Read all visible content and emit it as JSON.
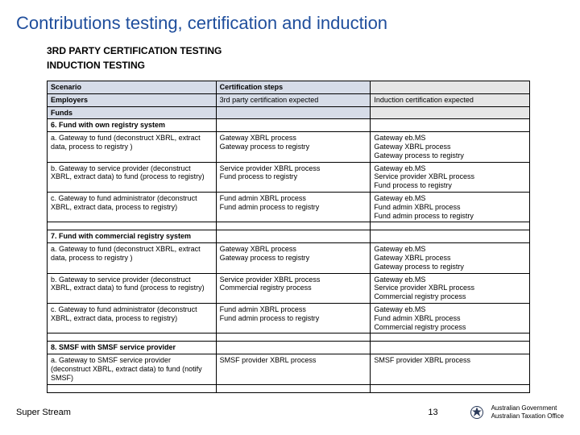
{
  "title": "Contributions testing, certification and induction",
  "sub1": "3RD PARTY CERTIFICATION TESTING",
  "sub2": "INDUCTION TESTING",
  "footer_left": "Super Stream",
  "page_number": "13",
  "gov_line1": "Australian Government",
  "gov_line2": "Australian Taxation Office",
  "header": {
    "c0": "Scenario",
    "c1": "Certification steps",
    "c2": ""
  },
  "row_emp": {
    "c0": "Employers",
    "c1": "3rd party certification expected",
    "c2": "Induction certification expected"
  },
  "row_funds": {
    "c0": "Funds",
    "c1": "",
    "c2": ""
  },
  "sect6": {
    "c0": "6. Fund with own registry system",
    "c1": "",
    "c2": ""
  },
  "r6a": {
    "c0": "a. Gateway to fund (deconstruct XBRL, extract data, process to registry )",
    "c1": "Gateway XBRL process\nGateway process to registry",
    "c2": "Gateway eb.MS\nGateway XBRL process\nGateway process to registry"
  },
  "r6b": {
    "c0": "b. Gateway to service provider (deconstruct XBRL, extract data) to fund (process to registry)",
    "c1": "Service  provider XBRL process\nFund process to registry",
    "c2": "Gateway eb.MS\nService  provider XBRL process\nFund process to registry"
  },
  "r6c": {
    "c0": "c. Gateway to fund administrator (deconstruct XBRL, extract data, process to registry)",
    "c1": "Fund admin  XBRL process\nFund admin  process to registry",
    "c2": "Gateway eb.MS\nFund admin  XBRL process\nFund admin  process to registry"
  },
  "sect7": {
    "c0": "7. Fund with commercial registry system",
    "c1": "",
    "c2": ""
  },
  "r7a": {
    "c0": "a. Gateway to fund (deconstruct XBRL, extract data, process to registry )",
    "c1": "Gateway XBRL process\nGateway process to registry",
    "c2": "Gateway eb.MS\nGateway XBRL process\nGateway process to registry"
  },
  "r7b": {
    "c0": "b. Gateway to service provider (deconstruct XBRL, extract data) to fund (process to registry)",
    "c1": "Service provider XBRL process\nCommercial registry process",
    "c2": "Gateway eb.MS\nService provider XBRL process\nCommercial registry process"
  },
  "r7c": {
    "c0": "c. Gateway to fund administrator (deconstruct XBRL, extract data, process to registry)",
    "c1": "Fund admin  XBRL process\nFund admin  process to registry",
    "c2": "Gateway eb.MS\nFund admin  XBRL process\nCommercial registry process"
  },
  "sect8": {
    "c0": "8. SMSF with SMSF service provider",
    "c1": "",
    "c2": ""
  },
  "r8a": {
    "c0": "a. Gateway to SMSF service provider (deconstruct XBRL, extract data) to fund (notify SMSF)",
    "c1": "SMSF provider XBRL process",
    "c2": "SMSF provider XBRL process"
  }
}
